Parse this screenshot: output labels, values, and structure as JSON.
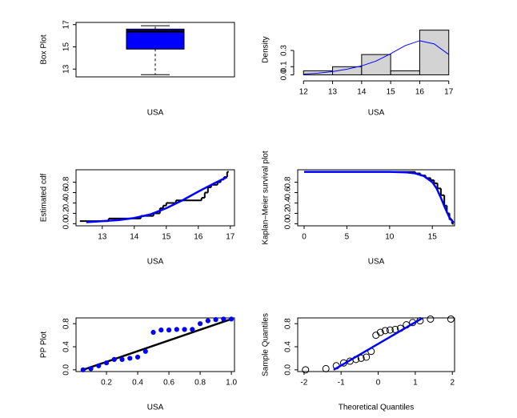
{
  "chart_data": [
    {
      "type": "box",
      "x_label": "USA",
      "y_label": "Box Plot",
      "ylim": [
        12.3,
        17.2
      ],
      "yticks": [
        13,
        15,
        17
      ],
      "min": 12.5,
      "q1": 14.8,
      "median": 16.4,
      "q3": 16.6,
      "max": 16.9,
      "color": "#0000ff"
    },
    {
      "type": "histogram",
      "x_label": "USA",
      "y_label": "Density",
      "xlim": [
        11.8,
        17.2
      ],
      "xticks": [
        12,
        13,
        14,
        15,
        16,
        17
      ],
      "ylim": [
        -0.025,
        0.645
      ],
      "yticks": [
        {
          "value": 0,
          "label": "0.0"
        },
        0.1,
        0.3
      ],
      "bins": [
        12,
        13,
        14,
        15,
        16,
        17
      ],
      "values": [
        0.05,
        0.1,
        0.25,
        0.05,
        0.55
      ],
      "color": "#d3d3d3",
      "series": [
        {
          "style": "line",
          "color": "#0000ff",
          "x": [
            12,
            12.5,
            13,
            13.5,
            14,
            14.5,
            15,
            15.5,
            16,
            16.5,
            17
          ],
          "values": [
            0.01,
            0.02,
            0.04,
            0.07,
            0.11,
            0.17,
            0.26,
            0.36,
            0.42,
            0.38,
            0.25
          ]
        }
      ]
    },
    {
      "type": "line",
      "x_label": "USA",
      "y_label": "Estimated cdf",
      "xlim": [
        12.18,
        17.13
      ],
      "xticks": [
        13,
        14,
        15,
        16,
        17
      ],
      "ylim": [
        -0.04,
        1.04
      ],
      "yticks": [
        {
          "value": 0,
          "label": "0.0"
        },
        0.2,
        0.4,
        0.6,
        0.8
      ],
      "series": [
        {
          "style": "step",
          "color": "#000000",
          "x": [
            12.3,
            13.2,
            14.2,
            14.6,
            14.8,
            14.9,
            15.0,
            15.3,
            16.1,
            16.2,
            16.3,
            16.4,
            16.6,
            16.7,
            16.8,
            16.9
          ],
          "values": [
            0.05,
            0.1,
            0.15,
            0.2,
            0.3,
            0.35,
            0.4,
            0.45,
            0.5,
            0.6,
            0.7,
            0.75,
            0.8,
            0.85,
            0.9,
            1.0
          ]
        },
        {
          "style": "line",
          "color": "#0000ff",
          "x": [
            12.5,
            13,
            13.5,
            14,
            14.5,
            15,
            15.5,
            16,
            16.5,
            16.9
          ],
          "values": [
            0.03,
            0.05,
            0.07,
            0.11,
            0.18,
            0.3,
            0.45,
            0.62,
            0.78,
            0.9
          ]
        }
      ]
    },
    {
      "type": "line",
      "x_label": "USA",
      "y_label": "Kaplan–Meier survival plot",
      "xlim": [
        -0.75,
        17.6
      ],
      "xticks": [
        0,
        5,
        10,
        15
      ],
      "ylim": [
        -0.04,
        1.04
      ],
      "yticks": [
        {
          "value": 0,
          "label": "0.0"
        },
        0.2,
        0.4,
        0.6,
        0.8
      ],
      "series": [
        {
          "style": "step",
          "color": "#000000",
          "x": [
            0,
            13,
            13.6,
            14.2,
            14.8,
            15.2,
            15.6,
            16.0,
            16.4,
            16.7,
            17.0,
            17.3
          ],
          "values": [
            1,
            0.97,
            0.93,
            0.88,
            0.84,
            0.78,
            0.68,
            0.55,
            0.35,
            0.2,
            0.08,
            0
          ]
        },
        {
          "style": "line",
          "color": "#0000ff",
          "x": [
            0,
            5,
            10,
            12,
            13,
            14,
            15,
            15.5,
            16,
            16.5,
            17,
            17.5
          ],
          "values": [
            1,
            1,
            1,
            0.99,
            0.97,
            0.92,
            0.8,
            0.68,
            0.5,
            0.3,
            0.12,
            0.02
          ]
        }
      ]
    },
    {
      "type": "scatter",
      "x_label": "USA",
      "y_label": "PP Plot",
      "xlim": [
        0.005,
        1.02
      ],
      "xticks": [
        0.2,
        0.4,
        0.6,
        0.8,
        {
          "value": 1,
          "label": "1.0"
        }
      ],
      "ylim": [
        -0.03,
        0.9
      ],
      "yticks": [
        {
          "value": 0,
          "label": "0.0"
        },
        0.4,
        0.8
      ],
      "series": [
        {
          "style": "line",
          "color": "#000000",
          "x": [
            0.05,
            1.0
          ],
          "values": [
            0,
            0.88
          ]
        },
        {
          "style": "points",
          "color": "#0000ff",
          "x": [
            0.05,
            0.1,
            0.15,
            0.2,
            0.25,
            0.3,
            0.35,
            0.4,
            0.45,
            0.5,
            0.55,
            0.6,
            0.65,
            0.7,
            0.75,
            0.8,
            0.85,
            0.9,
            0.95,
            1.0
          ],
          "values": [
            0.0,
            0.02,
            0.07,
            0.12,
            0.18,
            0.18,
            0.2,
            0.22,
            0.32,
            0.65,
            0.69,
            0.69,
            0.7,
            0.7,
            0.7,
            0.8,
            0.85,
            0.87,
            0.88,
            0.88
          ]
        }
      ]
    },
    {
      "type": "scatter",
      "x_label": "Theoretical Quantiles",
      "y_label": "Sample Quantiles",
      "xlim": [
        -2.17,
        2.06
      ],
      "xticks": [
        -2,
        -1,
        0,
        1,
        2
      ],
      "ylim": [
        -0.03,
        0.9
      ],
      "yticks": [
        {
          "value": 0,
          "label": "0.0"
        },
        0.4,
        0.8
      ],
      "series": [
        {
          "style": "circles",
          "color": "#000000",
          "x": [
            -1.96,
            -1.41,
            -1.13,
            -0.93,
            -0.76,
            -0.6,
            -0.46,
            -0.32,
            -0.19,
            -0.06,
            0.06,
            0.19,
            0.32,
            0.46,
            0.6,
            0.76,
            0.93,
            1.13,
            1.41,
            1.96
          ],
          "values": [
            0.0,
            0.02,
            0.07,
            0.12,
            0.15,
            0.18,
            0.2,
            0.22,
            0.32,
            0.6,
            0.65,
            0.68,
            0.69,
            0.7,
            0.72,
            0.78,
            0.82,
            0.85,
            0.88,
            0.88
          ]
        },
        {
          "style": "line",
          "color": "#0000ff",
          "x": [
            -1.2,
            1.2
          ],
          "values": [
            0,
            0.9
          ]
        }
      ]
    }
  ]
}
